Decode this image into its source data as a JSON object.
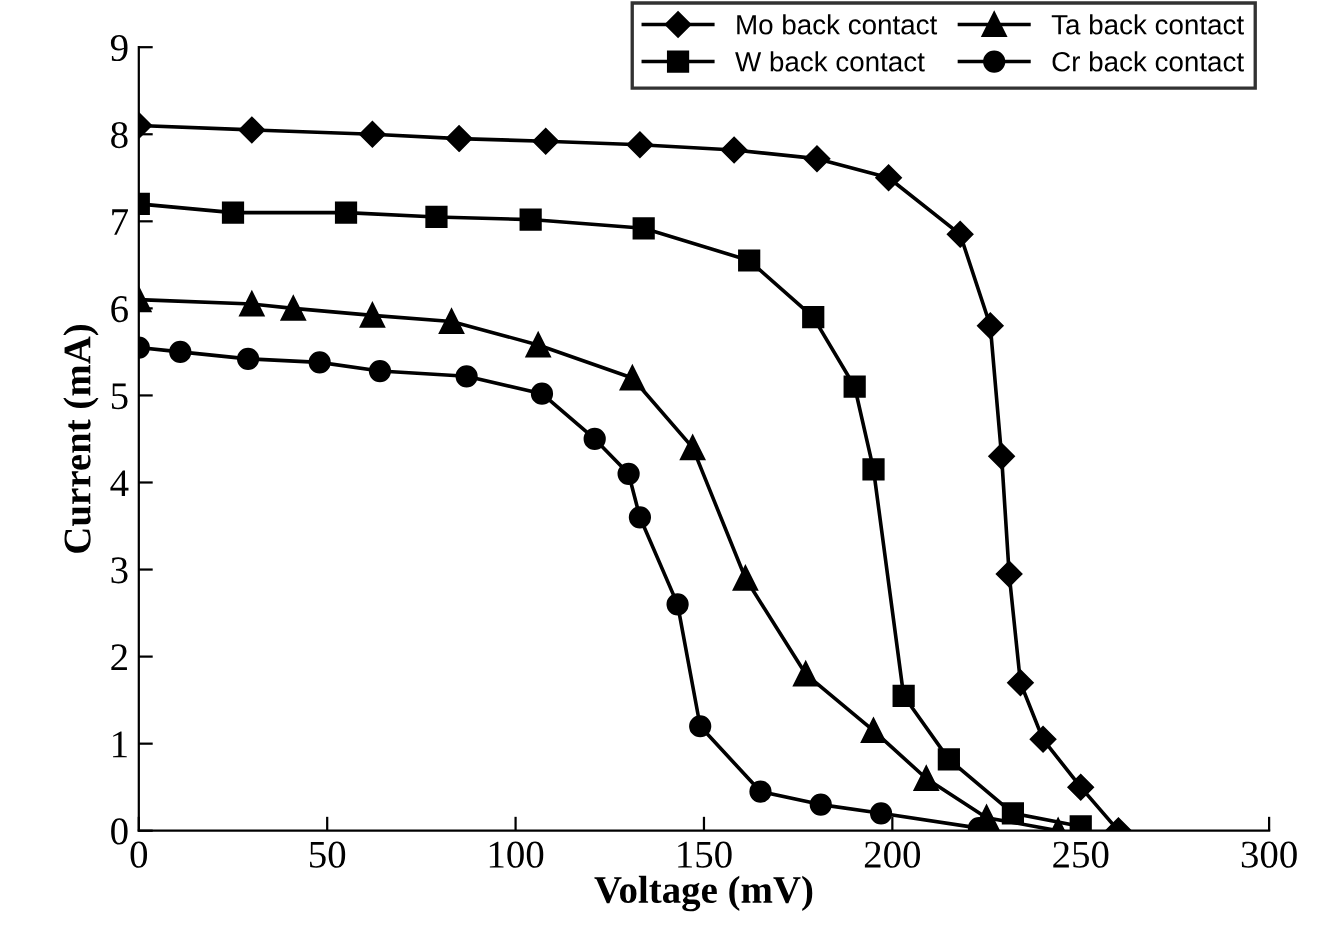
{
  "chart_data": {
    "type": "line",
    "xlabel": "Voltage (mV)",
    "ylabel": "Current (mA)",
    "xlim": [
      0,
      300
    ],
    "xticks": [
      0,
      50,
      100,
      150,
      200,
      250,
      300
    ],
    "ylim": [
      0,
      9
    ],
    "yticks": [
      0,
      1,
      2,
      3,
      4,
      5,
      6,
      7,
      8,
      9
    ],
    "grid": false,
    "legend": "top right",
    "series": [
      {
        "name": "Mo back contact",
        "color": "#000000",
        "marker": "diamond",
        "x": [
          0,
          30,
          62,
          85,
          108,
          133,
          158,
          180,
          199,
          218,
          226,
          229,
          231,
          234,
          240,
          250,
          260
        ],
        "values": [
          8.1,
          8.05,
          8.0,
          7.95,
          7.92,
          7.88,
          7.82,
          7.72,
          7.5,
          6.85,
          5.8,
          4.3,
          2.95,
          1.7,
          1.05,
          0.5,
          0
        ]
      },
      {
        "name": "W back contact",
        "color": "#000000",
        "marker": "square",
        "x": [
          0,
          25,
          55,
          79,
          104,
          134,
          162,
          179,
          190,
          195,
          203,
          215,
          232,
          250
        ],
        "values": [
          7.2,
          7.1,
          7.1,
          7.05,
          7.02,
          6.92,
          6.55,
          5.9,
          5.1,
          4.15,
          1.55,
          0.82,
          0.2,
          0.05
        ]
      },
      {
        "name": "Ta back contact",
        "color": "#000000",
        "marker": "triangle",
        "x": [
          0,
          30,
          41,
          62,
          83,
          106,
          131,
          147,
          161,
          177,
          195,
          209,
          225,
          244
        ],
        "values": [
          6.1,
          6.05,
          6.0,
          5.92,
          5.85,
          5.58,
          5.2,
          4.4,
          2.9,
          1.8,
          1.15,
          0.6,
          0.15,
          0
        ]
      },
      {
        "name": "Cr back contact",
        "color": "#000000",
        "marker": "circle",
        "x": [
          0,
          11,
          29,
          48,
          64,
          87,
          107,
          121,
          130,
          133,
          143,
          149,
          165,
          181,
          197,
          223
        ],
        "values": [
          5.55,
          5.5,
          5.42,
          5.38,
          5.28,
          5.22,
          5.02,
          4.5,
          4.1,
          3.6,
          2.6,
          1.2,
          0.45,
          0.3,
          0.2,
          0.03
        ]
      }
    ]
  }
}
